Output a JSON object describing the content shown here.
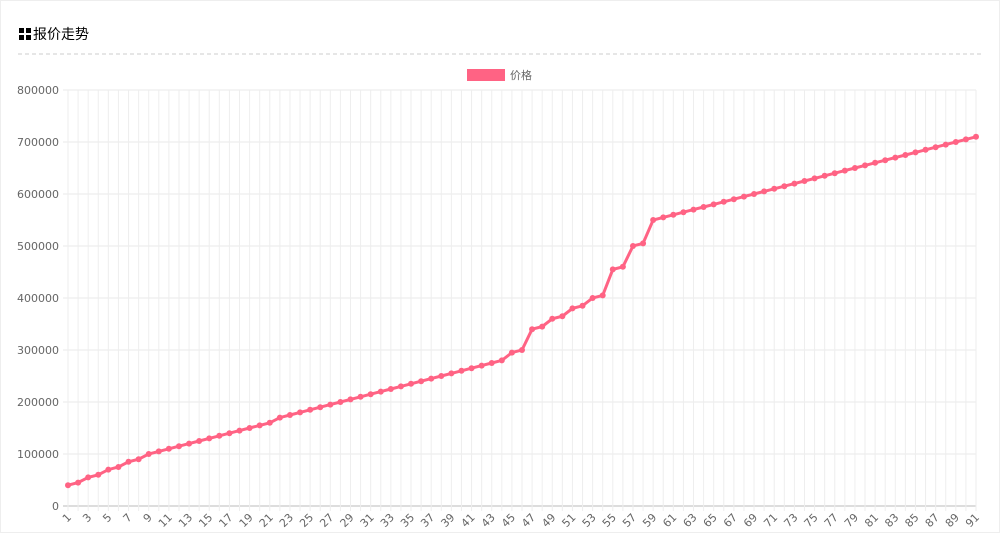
{
  "header": {
    "title": "报价走势"
  },
  "chart_data": {
    "type": "line",
    "legend": "top",
    "categories": [
      "1",
      null,
      "3",
      null,
      "5",
      null,
      "7",
      null,
      "9",
      null,
      "11",
      null,
      "13",
      null,
      "15",
      null,
      "17",
      null,
      "19",
      null,
      "21",
      null,
      "23",
      null,
      "25",
      null,
      "27",
      null,
      "29",
      null,
      "31",
      null,
      "33",
      null,
      "35",
      null,
      "37",
      null,
      "39",
      null,
      "41",
      null,
      "43",
      null,
      "45",
      null,
      "47",
      null,
      "49",
      null,
      "51",
      null,
      "53",
      null,
      "55",
      null,
      "57",
      null,
      "59",
      null,
      "61",
      null,
      "63",
      null,
      "65",
      null,
      "67",
      null,
      "69",
      null,
      "71",
      null,
      "73",
      null,
      "75",
      null,
      "77",
      null,
      "79",
      null,
      "81",
      null,
      "83",
      null,
      "85",
      null,
      "87",
      null,
      "89",
      null,
      "91"
    ],
    "series": [
      {
        "name": "价格",
        "color": "#ff6384",
        "values": [
          40000,
          45000,
          55000,
          60000,
          70000,
          75000,
          85000,
          90000,
          100000,
          105000,
          110000,
          115000,
          120000,
          125000,
          130000,
          135000,
          140000,
          145000,
          150000,
          155000,
          160000,
          170000,
          175000,
          180000,
          185000,
          190000,
          195000,
          200000,
          205000,
          210000,
          215000,
          220000,
          225000,
          230000,
          235000,
          240000,
          245000,
          250000,
          255000,
          260000,
          265000,
          270000,
          275000,
          280000,
          295000,
          300000,
          340000,
          345000,
          360000,
          365000,
          380000,
          385000,
          400000,
          405000,
          455000,
          460000,
          500000,
          505000,
          550000,
          555000,
          560000,
          565000,
          570000,
          575000,
          580000,
          585000,
          590000,
          595000,
          600000,
          605000,
          610000,
          615000,
          620000,
          625000,
          630000,
          635000,
          640000,
          645000,
          650000,
          655000,
          660000,
          665000,
          670000,
          675000,
          680000,
          685000,
          690000,
          695000,
          700000,
          705000,
          710000
        ]
      }
    ],
    "ylim": [
      0,
      800000
    ],
    "yticks": [
      0,
      100000,
      200000,
      300000,
      400000,
      500000,
      600000,
      700000,
      800000
    ],
    "grid": true
  }
}
